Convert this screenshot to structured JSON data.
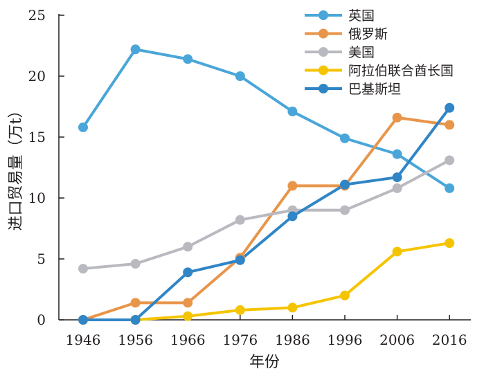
{
  "chart_data": {
    "type": "line",
    "title": "",
    "xlabel": "年份",
    "ylabel": "进口贸易量（万t）",
    "categories": [
      "1946",
      "1956",
      "1966",
      "1976",
      "1986",
      "1996",
      "2006",
      "2016"
    ],
    "y_ticks": [
      "0",
      "5",
      "10",
      "15",
      "20",
      "25"
    ],
    "ylim": [
      0,
      25
    ],
    "grid": false,
    "legend_position": "top-right",
    "series": [
      {
        "name": "英国",
        "color": "#4aa6d8",
        "values": [
          15.8,
          22.2,
          21.4,
          20.0,
          17.1,
          14.9,
          13.6,
          10.8
        ]
      },
      {
        "name": "俄罗斯",
        "color": "#e8954a",
        "values": [
          0.0,
          1.4,
          1.4,
          5.1,
          11.0,
          11.0,
          16.6,
          16.0
        ]
      },
      {
        "name": "美国",
        "color": "#b9b9c0",
        "values": [
          4.2,
          4.6,
          6.0,
          8.2,
          9.0,
          9.0,
          10.8,
          13.1
        ]
      },
      {
        "name": "阿拉伯联合酋长国",
        "color": "#f5c400",
        "values": [
          null,
          0.0,
          0.3,
          0.8,
          1.0,
          2.0,
          5.6,
          6.3
        ]
      },
      {
        "name": "巴基斯坦",
        "color": "#2f85c6",
        "values": [
          0.0,
          0.0,
          3.9,
          4.9,
          8.5,
          11.1,
          11.7,
          17.4
        ]
      }
    ]
  }
}
